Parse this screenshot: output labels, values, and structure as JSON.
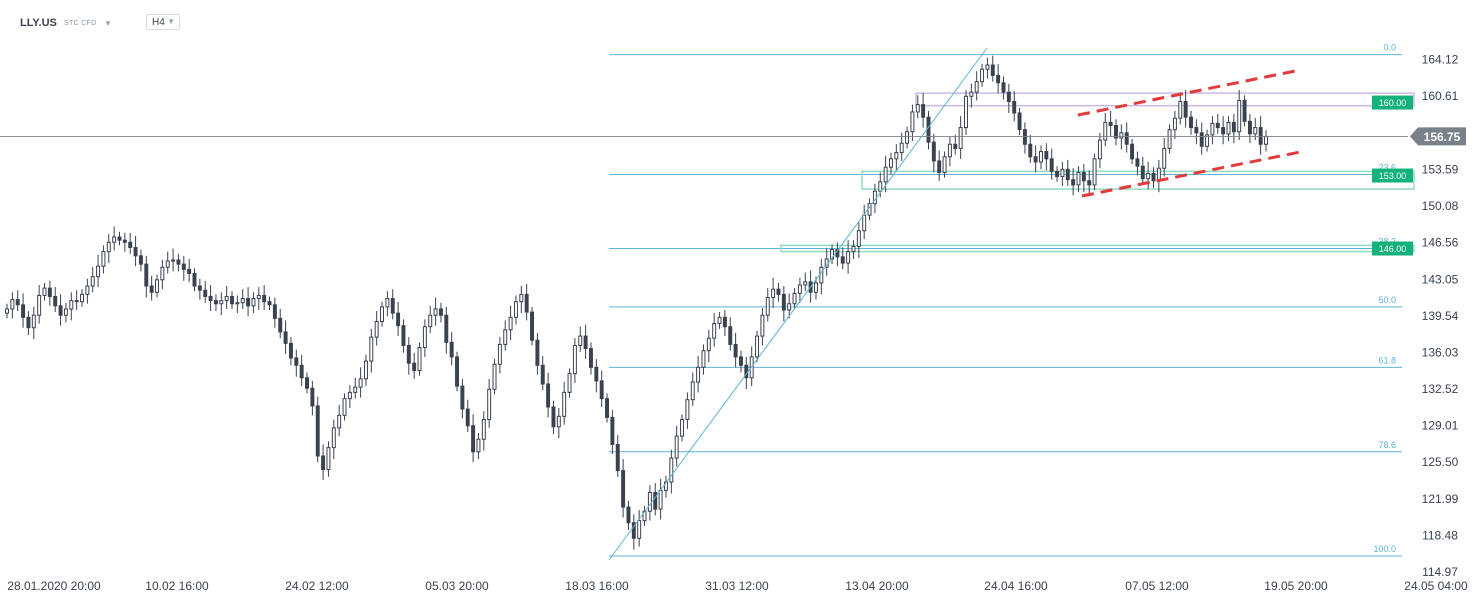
{
  "header": {
    "symbol": "LLY.US",
    "subtitle": "STC CFD",
    "dropdown_icon": "chevron-down-icon",
    "timeframe": "H4"
  },
  "chart_data": {
    "type": "candlestick",
    "ylim": [
      114.97,
      166.0
    ],
    "y_ticks": [
      164.12,
      160.61,
      157.1,
      153.59,
      150.08,
      146.56,
      143.05,
      139.54,
      136.03,
      132.52,
      129.01,
      125.5,
      121.99,
      118.48,
      114.97
    ],
    "x_tick_labels": [
      "28.01.2020  20:00",
      "10.02  16:00",
      "24.02  12:00",
      "05.03  20:00",
      "18.03  16:00",
      "31.03  12:00",
      "13.04  20:00",
      "24.04  16:00",
      "07.05  12:00",
      "19.05  20:00",
      "24.05  04:00"
    ],
    "last_price": "156.75",
    "price_tags": [
      {
        "label": "160.00",
        "value": 160.0,
        "color": "#14b27a"
      },
      {
        "label": "153.00",
        "value": 153.0,
        "color": "#14b27a"
      },
      {
        "label": "146.00",
        "value": 146.0,
        "color": "#14b27a"
      }
    ],
    "fib_levels": [
      {
        "label": "0.0",
        "value": 164.6
      },
      {
        "label": "23.6",
        "value": 153.1
      },
      {
        "label": "38.2",
        "value": 146.0
      },
      {
        "label": "50.0",
        "value": 140.4
      },
      {
        "label": "61.8",
        "value": 134.6
      },
      {
        "label": "78.6",
        "value": 126.5
      },
      {
        "label": "100.0",
        "value": 116.5
      }
    ],
    "zones": [
      {
        "from": 159.7,
        "to": 160.9,
        "color": "#c9b8e8"
      },
      {
        "from": 151.7,
        "to": 153.4,
        "color": "#8fdcbf"
      },
      {
        "from": 145.7,
        "to": 146.3,
        "color": "#8fdcbf"
      }
    ],
    "channel_upper": [
      [
        1078,
        115
      ],
      [
        1300,
        70
      ]
    ],
    "channel_lower": [
      [
        1082,
        196
      ],
      [
        1305,
        151
      ]
    ],
    "trend_line": [
      [
        609,
        560
      ],
      [
        987,
        48
      ]
    ],
    "colors": {
      "up": "#3a4250",
      "down": "#3a4250",
      "fib": "#5fb3d6",
      "channel": "#e23b3b",
      "axis_text": "#3a4250",
      "last_price_bg": "#7a808a"
    },
    "candles": [
      [
        139.8,
        140.2
      ],
      [
        140.2,
        141.1
      ],
      [
        141.1,
        140.6
      ],
      [
        140.6,
        139.4
      ],
      [
        139.4,
        138.4
      ],
      [
        138.4,
        139.6
      ],
      [
        139.6,
        141.5
      ],
      [
        141.5,
        142.2
      ],
      [
        142.2,
        141.4
      ],
      [
        141.4,
        140.5
      ],
      [
        140.5,
        139.6
      ],
      [
        139.6,
        140.2
      ],
      [
        140.2,
        141.0
      ],
      [
        141.0,
        140.9
      ],
      [
        140.9,
        141.6
      ],
      [
        141.6,
        142.4
      ],
      [
        142.4,
        143.3
      ],
      [
        143.3,
        144.3
      ],
      [
        144.3,
        145.7
      ],
      [
        145.7,
        146.6
      ],
      [
        146.6,
        147.1
      ],
      [
        147.1,
        146.8
      ],
      [
        146.8,
        146.6
      ],
      [
        146.6,
        146.1
      ],
      [
        146.1,
        145.3
      ],
      [
        145.3,
        144.5
      ],
      [
        144.5,
        142.4
      ],
      [
        142.4,
        141.8
      ],
      [
        141.8,
        143.0
      ],
      [
        143.0,
        144.2
      ],
      [
        144.2,
        144.8
      ],
      [
        144.8,
        144.9
      ],
      [
        144.9,
        144.5
      ],
      [
        144.5,
        144.0
      ],
      [
        144.0,
        143.6
      ],
      [
        143.6,
        142.4
      ],
      [
        142.4,
        142.0
      ],
      [
        142.0,
        141.4
      ],
      [
        141.4,
        141.0
      ],
      [
        141.0,
        140.7
      ],
      [
        140.7,
        141.0
      ],
      [
        141.0,
        141.4
      ],
      [
        141.4,
        140.7
      ],
      [
        140.7,
        140.8
      ],
      [
        140.8,
        141.2
      ],
      [
        141.2,
        140.5
      ],
      [
        140.5,
        141.2
      ],
      [
        141.2,
        141.5
      ],
      [
        141.5,
        140.9
      ],
      [
        140.9,
        140.6
      ],
      [
        140.6,
        139.3
      ],
      [
        139.3,
        138.0
      ],
      [
        138.0,
        136.9
      ],
      [
        136.9,
        135.5
      ],
      [
        135.5,
        134.8
      ],
      [
        134.8,
        133.6
      ],
      [
        133.6,
        132.6
      ],
      [
        132.6,
        130.9
      ],
      [
        130.9,
        126.1
      ],
      [
        126.1,
        124.8
      ],
      [
        124.8,
        126.9
      ],
      [
        126.9,
        128.8
      ],
      [
        128.8,
        130.0
      ],
      [
        130.0,
        131.6
      ],
      [
        131.6,
        132.2
      ],
      [
        132.2,
        132.7
      ],
      [
        132.7,
        133.5
      ],
      [
        133.5,
        135.2
      ],
      [
        135.2,
        137.5
      ],
      [
        137.5,
        139.0
      ],
      [
        139.0,
        140.4
      ],
      [
        140.4,
        141.2
      ],
      [
        141.2,
        139.8
      ],
      [
        139.8,
        138.6
      ],
      [
        138.6,
        136.7
      ],
      [
        136.7,
        135.0
      ],
      [
        135.0,
        134.3
      ],
      [
        134.3,
        136.5
      ],
      [
        136.5,
        138.5
      ],
      [
        138.5,
        139.6
      ],
      [
        139.6,
        140.2
      ],
      [
        140.2,
        139.6
      ],
      [
        139.6,
        137.0
      ],
      [
        137.0,
        135.6
      ],
      [
        135.6,
        132.8
      ],
      [
        132.8,
        130.6
      ],
      [
        130.6,
        129.0
      ],
      [
        129.0,
        126.5
      ],
      [
        126.5,
        127.7
      ],
      [
        127.7,
        129.6
      ],
      [
        129.6,
        132.5
      ],
      [
        132.5,
        134.9
      ],
      [
        134.9,
        136.8
      ],
      [
        136.8,
        138.2
      ],
      [
        138.2,
        139.4
      ],
      [
        139.4,
        140.9
      ],
      [
        140.9,
        141.6
      ],
      [
        141.6,
        139.9
      ],
      [
        139.9,
        137.2
      ],
      [
        137.2,
        134.8
      ],
      [
        134.8,
        133.0
      ],
      [
        133.0,
        130.8
      ],
      [
        130.8,
        128.9
      ],
      [
        128.9,
        129.9
      ],
      [
        129.9,
        132.2
      ],
      [
        132.2,
        134.0
      ],
      [
        134.0,
        136.7
      ],
      [
        136.7,
        137.6
      ],
      [
        137.6,
        136.4
      ],
      [
        136.4,
        134.6
      ],
      [
        134.6,
        133.3
      ],
      [
        133.3,
        131.6
      ],
      [
        131.6,
        129.8
      ],
      [
        129.8,
        127.2
      ],
      [
        127.2,
        124.7
      ],
      [
        124.7,
        121.2
      ],
      [
        121.2,
        119.7
      ],
      [
        119.7,
        118.2
      ],
      [
        118.2,
        119.9
      ],
      [
        119.9,
        120.8
      ],
      [
        120.8,
        122.6
      ],
      [
        122.6,
        121.0
      ],
      [
        121.0,
        122.8
      ],
      [
        122.8,
        123.6
      ],
      [
        123.6,
        125.9
      ],
      [
        125.9,
        128.0
      ],
      [
        128.0,
        129.6
      ],
      [
        129.6,
        131.5
      ],
      [
        131.5,
        133.2
      ],
      [
        133.2,
        134.6
      ],
      [
        134.6,
        136.2
      ],
      [
        136.2,
        137.4
      ],
      [
        137.4,
        138.8
      ],
      [
        138.8,
        139.4
      ],
      [
        139.4,
        138.5
      ],
      [
        138.5,
        136.8
      ],
      [
        136.8,
        135.6
      ],
      [
        135.6,
        134.8
      ],
      [
        134.8,
        133.6
      ],
      [
        133.6,
        135.6
      ],
      [
        135.6,
        137.6
      ],
      [
        137.6,
        139.6
      ],
      [
        139.6,
        141.3
      ],
      [
        141.3,
        142.1
      ],
      [
        142.1,
        141.6
      ],
      [
        141.6,
        140.1
      ],
      [
        140.1,
        140.7
      ],
      [
        140.7,
        141.7
      ],
      [
        141.7,
        142.5
      ],
      [
        142.5,
        142.8
      ],
      [
        142.8,
        141.8
      ],
      [
        141.8,
        142.7
      ],
      [
        142.7,
        144.2
      ],
      [
        144.2,
        145.0
      ],
      [
        145.0,
        145.9
      ],
      [
        145.9,
        145.2
      ],
      [
        145.2,
        144.6
      ],
      [
        144.6,
        145.7
      ],
      [
        145.7,
        146.2
      ],
      [
        146.2,
        147.7
      ],
      [
        147.7,
        149.2
      ],
      [
        149.2,
        150.3
      ],
      [
        150.3,
        151.5
      ],
      [
        151.5,
        152.4
      ],
      [
        152.4,
        153.8
      ],
      [
        153.8,
        154.6
      ],
      [
        154.6,
        155.2
      ],
      [
        155.2,
        156.1
      ],
      [
        156.1,
        157.2
      ],
      [
        157.2,
        159.1
      ],
      [
        159.1,
        159.8
      ],
      [
        159.8,
        158.6
      ],
      [
        158.6,
        156.2
      ],
      [
        156.2,
        154.4
      ],
      [
        154.4,
        153.3
      ],
      [
        153.3,
        154.8
      ],
      [
        154.8,
        156.0
      ],
      [
        156.0,
        155.6
      ],
      [
        155.6,
        157.6
      ],
      [
        157.6,
        160.6
      ],
      [
        160.6,
        161.0
      ],
      [
        161.0,
        162.0
      ],
      [
        162.0,
        163.2
      ],
      [
        163.2,
        163.6
      ],
      [
        163.6,
        162.6
      ],
      [
        162.6,
        161.9
      ],
      [
        161.9,
        161.0
      ],
      [
        161.0,
        160.1
      ],
      [
        160.1,
        159.0
      ],
      [
        159.0,
        157.4
      ],
      [
        157.4,
        156.0
      ],
      [
        156.0,
        154.8
      ],
      [
        154.8,
        154.3
      ],
      [
        154.3,
        155.3
      ],
      [
        155.3,
        154.6
      ],
      [
        154.6,
        153.4
      ],
      [
        153.4,
        152.9
      ],
      [
        152.9,
        153.6
      ],
      [
        153.6,
        152.6
      ],
      [
        152.6,
        152.1
      ],
      [
        152.1,
        153.3
      ],
      [
        153.3,
        152.5
      ],
      [
        152.5,
        152.1
      ],
      [
        152.1,
        154.6
      ],
      [
        154.6,
        156.4
      ],
      [
        156.4,
        158.1
      ],
      [
        158.1,
        157.8
      ],
      [
        157.8,
        156.6
      ],
      [
        156.6,
        157.1
      ],
      [
        157.1,
        156.0
      ],
      [
        156.0,
        154.6
      ],
      [
        154.6,
        153.9
      ],
      [
        153.9,
        152.7
      ],
      [
        152.7,
        153.2
      ],
      [
        153.2,
        152.5
      ],
      [
        152.5,
        153.7
      ],
      [
        153.7,
        155.6
      ],
      [
        155.6,
        157.4
      ],
      [
        157.4,
        158.5
      ],
      [
        158.5,
        160.1
      ],
      [
        160.1,
        158.6
      ],
      [
        158.6,
        157.6
      ],
      [
        157.6,
        157.1
      ],
      [
        157.1,
        155.8
      ],
      [
        155.8,
        156.9
      ],
      [
        156.9,
        158.0
      ],
      [
        158.0,
        157.6
      ],
      [
        157.6,
        157.0
      ],
      [
        157.0,
        158.1
      ],
      [
        158.1,
        157.2
      ],
      [
        157.2,
        160.2
      ],
      [
        160.2,
        158.2
      ],
      [
        158.2,
        157.0
      ],
      [
        157.0,
        157.6
      ],
      [
        157.6,
        156.0
      ],
      [
        156.0,
        156.75
      ]
    ]
  }
}
